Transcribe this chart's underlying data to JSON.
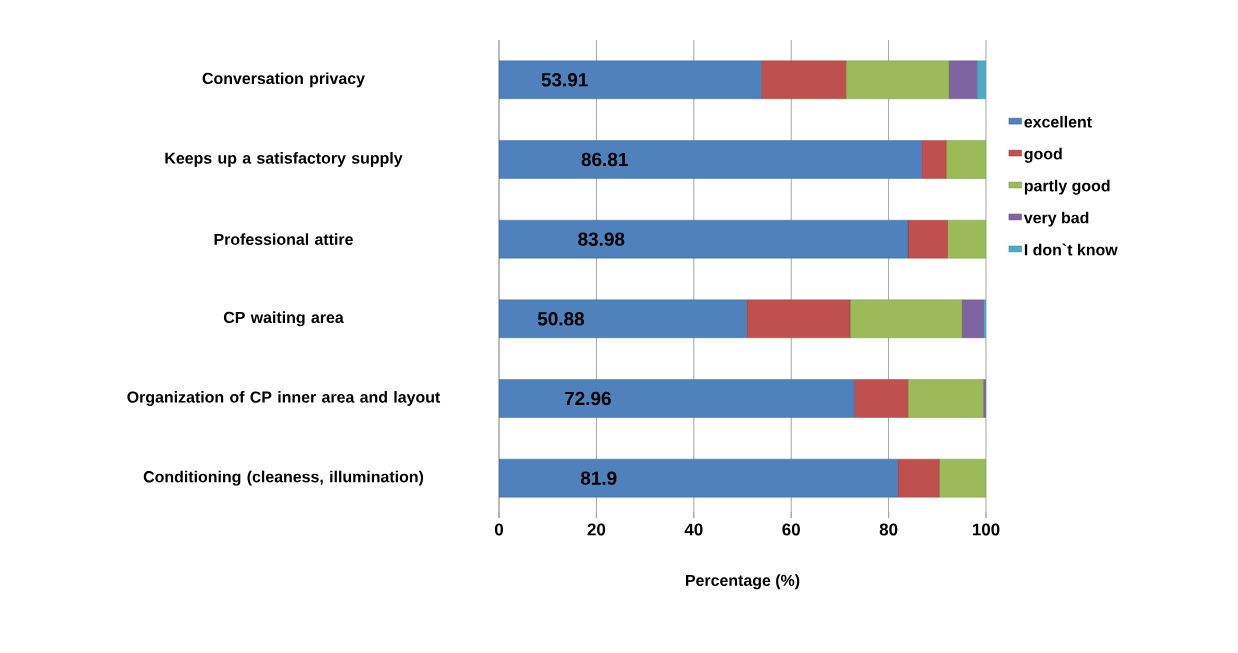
{
  "chart_data": {
    "type": "bar",
    "orientation": "horizontal",
    "stacked": true,
    "xlabel": "Percentage (%)",
    "categories": [
      "Conversation privacy",
      "Keeps up a satisfactory supply",
      "Professional attire",
      "CP waiting area",
      "Organization of CP inner area and layout",
      "Conditioning (cleaness, illumination)"
    ],
    "series": [
      {
        "name": "excellent",
        "color": "#4f81bd",
        "values": [
          53.91,
          86.81,
          83.98,
          50.88,
          72.96,
          81.9
        ],
        "value_labels": [
          "53.91",
          "86.81",
          "83.98",
          "50.88",
          "72.96",
          "81.9"
        ]
      },
      {
        "name": "good",
        "color": "#c0504d",
        "values": [
          17.3,
          5.0,
          8.1,
          21.2,
          11.0,
          8.5
        ]
      },
      {
        "name": "partly good",
        "color": "#9bbb59",
        "values": [
          21.2,
          8.2,
          7.9,
          23.0,
          15.5,
          9.6
        ]
      },
      {
        "name": "very bad",
        "color": "#8064a2",
        "values": [
          5.7,
          0,
          0,
          4.4,
          0.5,
          0
        ]
      },
      {
        "name": "I don`t know",
        "color": "#4bacc6",
        "values": [
          1.8,
          0,
          0,
          0.5,
          0,
          0
        ]
      }
    ],
    "xlim": [
      0,
      100
    ],
    "xticks": [
      0,
      20,
      40,
      60,
      80,
      100
    ],
    "grid": "x",
    "legend": "right"
  }
}
